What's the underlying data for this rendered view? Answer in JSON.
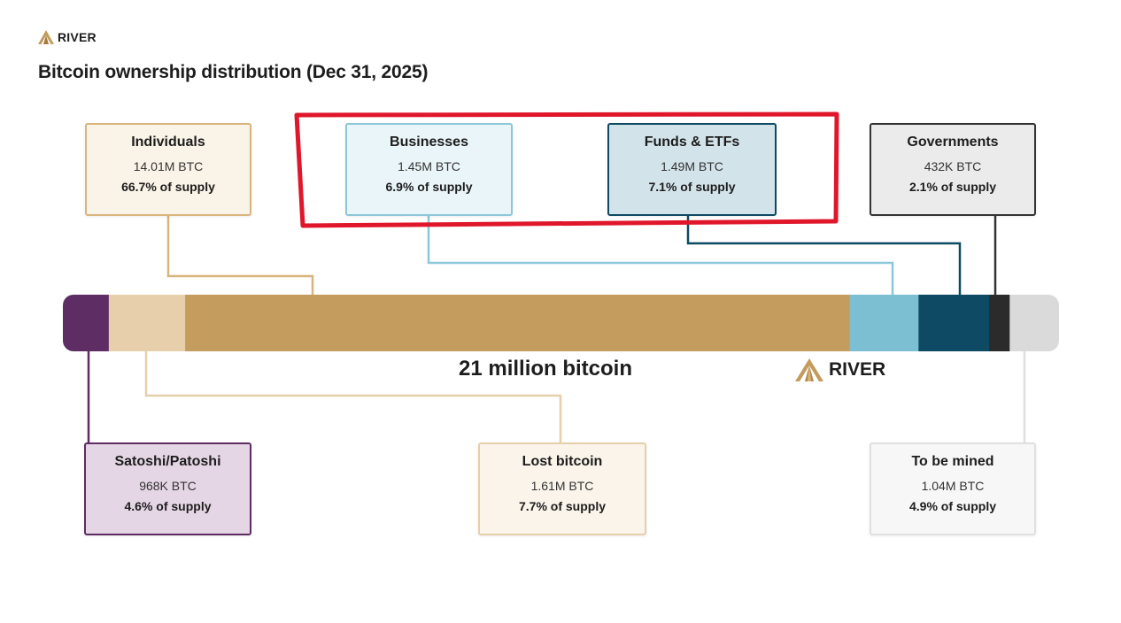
{
  "header": {
    "brand": "RIVER",
    "title": "Bitcoin ownership distribution (Dec 31, 2025)"
  },
  "chart_data": {
    "type": "bar",
    "title": "Bitcoin ownership distribution (Dec 31, 2025)",
    "total_label": "21 million bitcoin",
    "watermark": "RIVER",
    "categories": [
      "Satoshi/Patoshi",
      "Lost bitcoin",
      "Individuals",
      "Businesses",
      "Funds & ETFs",
      "Governments",
      "To be mined"
    ],
    "segments": [
      {
        "name": "Satoshi/Patoshi",
        "btc_label": "968K BTC",
        "pct_label": "4.6% of supply",
        "btc": 0.968,
        "pct": 4.6,
        "color": "#5e2d63",
        "card_bg": "#e5d6e5",
        "card_border": "#5e2d63"
      },
      {
        "name": "Lost bitcoin",
        "btc_label": "1.61M BTC",
        "pct_label": "7.7% of supply",
        "btc": 1.61,
        "pct": 7.7,
        "color": "#e6cfaa",
        "card_bg": "#faf4ea",
        "card_border": "#e6cfaa"
      },
      {
        "name": "Individuals",
        "btc_label": "14.01M BTC",
        "pct_label": "66.7% of supply",
        "btc": 14.01,
        "pct": 66.7,
        "color": "#c49c5d",
        "card_bg": "#faf3e7",
        "card_border": "#d9b57d"
      },
      {
        "name": "Businesses",
        "btc_label": "1.45M BTC",
        "pct_label": "6.9% of supply",
        "btc": 1.45,
        "pct": 6.9,
        "color": "#7cbfd3",
        "card_bg": "#eaf5f9",
        "card_border": "#8cc7d9"
      },
      {
        "name": "Funds & ETFs",
        "btc_label": "1.49M BTC",
        "pct_label": "7.1% of supply",
        "btc": 1.49,
        "pct": 7.1,
        "color": "#0e4a63",
        "card_bg": "#d3e3ea",
        "card_border": "#0e4a63"
      },
      {
        "name": "Governments",
        "btc_label": "432K BTC",
        "pct_label": "2.1% of supply",
        "btc": 0.432,
        "pct": 2.1,
        "color": "#2b2b2b",
        "card_bg": "#ebebeb",
        "card_border": "#333333"
      },
      {
        "name": "To be mined",
        "btc_label": "1.04M BTC",
        "pct_label": "4.9% of supply",
        "btc": 1.04,
        "pct": 4.9,
        "color": "#dadada",
        "card_bg": "#f7f7f7",
        "card_border": "#e0e0e0"
      }
    ],
    "highlight": {
      "segments": [
        "Businesses",
        "Funds & ETFs"
      ],
      "color": "#e0162b"
    },
    "grid": false,
    "legend": "none"
  }
}
